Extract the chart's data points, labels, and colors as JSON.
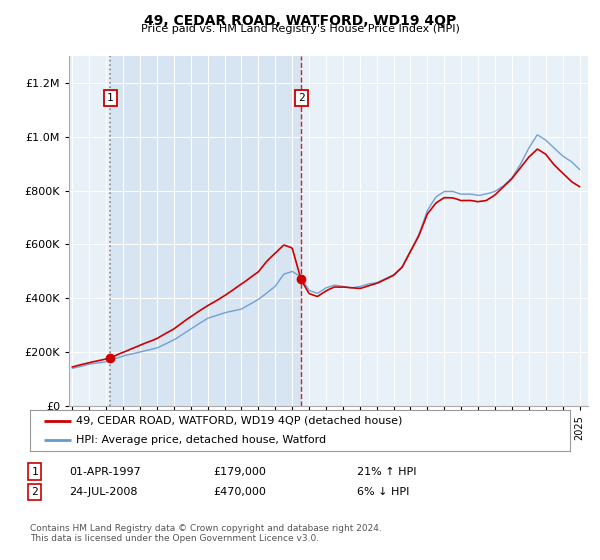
{
  "title": "49, CEDAR ROAD, WATFORD, WD19 4QP",
  "subtitle": "Price paid vs. HM Land Registry's House Price Index (HPI)",
  "legend_line1": "49, CEDAR ROAD, WATFORD, WD19 4QP (detached house)",
  "legend_line2": "HPI: Average price, detached house, Watford",
  "sale1_date": "01-APR-1997",
  "sale1_price": 179000,
  "sale1_label": "21% ↑ HPI",
  "sale2_date": "24-JUL-2008",
  "sale2_price": 470000,
  "sale2_label": "6% ↓ HPI",
  "footer": "Contains HM Land Registry data © Crown copyright and database right 2024.\nThis data is licensed under the Open Government Licence v3.0.",
  "chart_bg": "#e8f0f8",
  "fig_bg": "#ffffff",
  "hpi_color": "#6699cc",
  "price_color": "#cc0000",
  "shade_color": "#ccdded",
  "ylim": [
    0,
    1300000
  ],
  "yticks": [
    0,
    200000,
    400000,
    600000,
    800000,
    1000000,
    1200000
  ],
  "xlim_start": 1994.8,
  "xlim_end": 2025.5,
  "t1": 1997.25,
  "t2": 2008.54
}
